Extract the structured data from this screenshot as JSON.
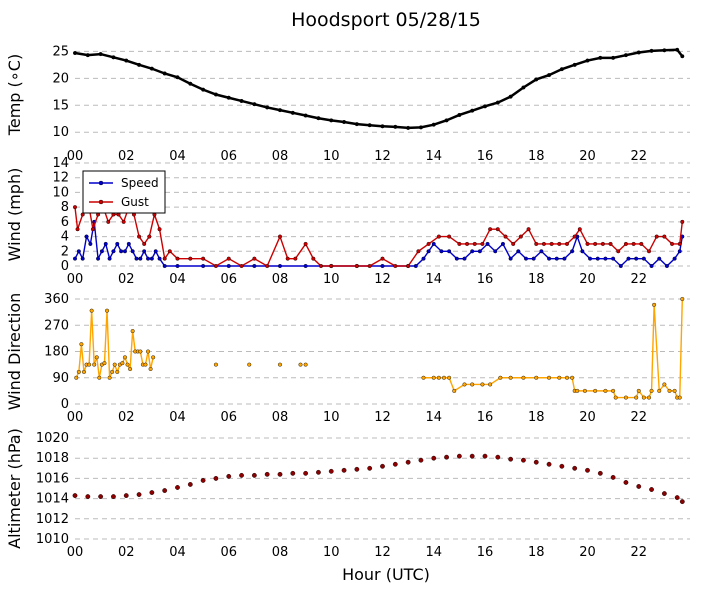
{
  "figure": {
    "title": "Hoodsport 05/28/15",
    "xlabel": "Hour (UTC)",
    "x_ticks": [
      "00",
      "02",
      "04",
      "06",
      "08",
      "10",
      "12",
      "14",
      "16",
      "18",
      "20",
      "22"
    ]
  },
  "chart_data": [
    {
      "type": "line",
      "ylabel": "Temp (∘C)",
      "ylim": [
        8,
        26
      ],
      "yticks": [
        10,
        15,
        20,
        25
      ],
      "xlim": [
        0,
        24
      ],
      "grid": "horizontal dashed",
      "series": [
        {
          "color": "#000000",
          "x": [
            0,
            0.5,
            1,
            1.5,
            2,
            2.5,
            3,
            3.5,
            4,
            4.5,
            5,
            5.5,
            6,
            6.5,
            7,
            7.5,
            8,
            8.5,
            9,
            9.5,
            10,
            10.5,
            11,
            11.5,
            12,
            12.5,
            13,
            13.5,
            14,
            14.5,
            15,
            15.5,
            16,
            16.5,
            17,
            17.5,
            18,
            18.5,
            19,
            19.5,
            20,
            20.5,
            21,
            21.5,
            22,
            22.5,
            23,
            23.5,
            23.7
          ],
          "y": [
            24.7,
            24.3,
            24.5,
            23.9,
            23.3,
            22.5,
            21.8,
            20.9,
            20.2,
            19.0,
            17.9,
            17.0,
            16.4,
            15.8,
            15.2,
            14.6,
            14.1,
            13.6,
            13.1,
            12.6,
            12.2,
            11.9,
            11.5,
            11.3,
            11.1,
            11.0,
            10.8,
            10.9,
            11.4,
            12.2,
            13.2,
            14.0,
            14.8,
            15.5,
            16.6,
            18.3,
            19.8,
            20.6,
            21.7,
            22.5,
            23.3,
            23.8,
            23.8,
            24.3,
            24.8,
            25.1,
            25.2,
            25.3,
            24.1
          ]
        }
      ]
    },
    {
      "type": "line",
      "ylabel": "Wind (mph)",
      "ylim": [
        0,
        14
      ],
      "yticks": [
        0,
        2,
        4,
        6,
        8,
        10,
        12,
        14
      ],
      "xlim": [
        0,
        24
      ],
      "grid": "horizontal dashed",
      "legend": "top-left",
      "series": [
        {
          "name": "Speed",
          "color": "#0000cc",
          "x": [
            0,
            0.15,
            0.3,
            0.45,
            0.6,
            0.75,
            0.9,
            1.05,
            1.2,
            1.35,
            1.5,
            1.65,
            1.8,
            1.95,
            2.1,
            2.25,
            2.4,
            2.55,
            2.7,
            2.85,
            3.0,
            3.15,
            3.3,
            3.5,
            4,
            5,
            6,
            7,
            8,
            9,
            10,
            11,
            12,
            13,
            13.3,
            13.6,
            13.8,
            14.0,
            14.3,
            14.6,
            14.9,
            15.2,
            15.5,
            15.8,
            16.1,
            16.4,
            16.7,
            17.0,
            17.3,
            17.6,
            17.9,
            18.2,
            18.5,
            18.8,
            19.1,
            19.4,
            19.6,
            19.8,
            20.1,
            20.4,
            20.7,
            21.0,
            21.3,
            21.6,
            21.9,
            22.2,
            22.5,
            22.8,
            23.1,
            23.4,
            23.6,
            23.7
          ],
          "y": [
            1,
            2,
            1,
            4,
            3,
            6,
            1,
            2,
            3,
            1,
            2,
            3,
            2,
            2,
            3,
            2,
            1,
            1,
            2,
            1,
            1,
            2,
            1,
            0,
            0,
            0,
            0,
            0,
            0,
            0,
            0,
            0,
            0,
            0,
            0,
            1,
            2,
            3,
            2,
            2,
            1,
            1,
            2,
            2,
            3,
            2,
            3,
            1,
            2,
            1,
            1,
            2,
            1,
            1,
            1,
            2,
            4,
            2,
            1,
            1,
            1,
            1,
            0,
            1,
            1,
            1,
            0,
            1,
            0,
            1,
            2,
            4
          ]
        },
        {
          "name": "Gust",
          "color": "#cc0000",
          "x": [
            0,
            0.1,
            0.3,
            0.5,
            0.7,
            0.9,
            1.1,
            1.3,
            1.5,
            1.7,
            1.9,
            2.1,
            2.3,
            2.5,
            2.7,
            2.9,
            3.1,
            3.3,
            3.5,
            3.7,
            4.0,
            4.5,
            5.0,
            5.5,
            6.0,
            6.5,
            7.0,
            7.5,
            8.0,
            8.3,
            8.6,
            9.0,
            9.3,
            9.6,
            10,
            11,
            11.5,
            12,
            12.5,
            13,
            13.4,
            13.8,
            14.2,
            14.6,
            15,
            15.3,
            15.6,
            15.9,
            16.2,
            16.5,
            16.8,
            17.1,
            17.4,
            17.7,
            18,
            18.3,
            18.6,
            18.9,
            19.2,
            19.5,
            19.7,
            20.0,
            20.3,
            20.6,
            20.9,
            21.2,
            21.5,
            21.8,
            22.1,
            22.4,
            22.7,
            23.0,
            23.3,
            23.6,
            23.7
          ],
          "y": [
            8,
            5,
            7,
            9,
            5,
            7,
            8,
            6,
            7,
            7,
            6,
            8,
            7,
            4,
            3,
            4,
            7,
            5,
            1,
            2,
            1,
            1,
            1,
            0,
            1,
            0,
            1,
            0,
            4,
            1,
            1,
            3,
            1,
            0,
            0,
            0,
            0,
            1,
            0,
            0,
            2,
            3,
            4,
            4,
            3,
            3,
            3,
            3,
            5,
            5,
            4,
            3,
            4,
            5,
            3,
            3,
            3,
            3,
            3,
            4,
            5,
            3,
            3,
            3,
            3,
            2,
            3,
            3,
            3,
            2,
            4,
            4,
            3,
            3,
            6
          ]
        }
      ]
    },
    {
      "type": "scatter",
      "ylabel": "Wind Direction",
      "ylim": [
        0,
        360
      ],
      "yticks": [
        0,
        90,
        180,
        270,
        360
      ],
      "xlim": [
        0,
        24
      ],
      "grid": "horizontal dashed",
      "series": [
        {
          "color": "#ffa500",
          "x": [
            0.05,
            0.15,
            0.25,
            0.35,
            0.45,
            0.55,
            0.65,
            0.75,
            0.85,
            0.95,
            1.05,
            1.15,
            1.25,
            1.35,
            1.45,
            1.55,
            1.65,
            1.75,
            1.85,
            1.95,
            2.05,
            2.15,
            2.25,
            2.35,
            2.45,
            2.55,
            2.65,
            2.75,
            2.85,
            2.95,
            3.05
          ],
          "y": [
            90,
            110,
            205,
            110,
            135,
            135,
            320,
            135,
            160,
            90,
            135,
            140,
            320,
            90,
            110,
            135,
            110,
            135,
            140,
            160,
            135,
            120,
            250,
            180,
            180,
            180,
            135,
            135,
            180,
            120,
            160
          ]
        },
        {
          "color": "#ffa500",
          "x": [
            5.5,
            6.8,
            8.0,
            8.8,
            9.0
          ],
          "y": [
            135,
            135,
            135,
            135,
            135
          ]
        },
        {
          "color": "#ffa500",
          "x": [
            13.6,
            14.0,
            14.2,
            14.4,
            14.6,
            14.8,
            15.2,
            15.5,
            15.9,
            16.2,
            16.6,
            17.0,
            17.5,
            18.0,
            18.5,
            18.9,
            19.2,
            19.4,
            19.5,
            19.6,
            19.9,
            20.3,
            20.7,
            21.0,
            21.1,
            21.5,
            21.9,
            22.0,
            22.2,
            22.4,
            22.5,
            22.6,
            22.8,
            23.0,
            23.2,
            23.4,
            23.5,
            23.6,
            23.7
          ],
          "y": [
            90,
            90,
            90,
            90,
            90,
            45,
            67,
            67,
            67,
            67,
            90,
            90,
            90,
            90,
            90,
            90,
            90,
            90,
            45,
            45,
            45,
            45,
            45,
            45,
            22,
            22,
            22,
            45,
            22,
            22,
            45,
            340,
            45,
            67,
            45,
            45,
            22,
            22,
            360
          ]
        }
      ]
    },
    {
      "type": "scatter",
      "ylabel": "Altimeter (hPa)",
      "ylim": [
        1010,
        1020
      ],
      "yticks": [
        1010,
        1012,
        1014,
        1016,
        1018,
        1020
      ],
      "xlim": [
        0,
        24
      ],
      "grid": "horizontal dashed",
      "series": [
        {
          "color": "#8b0000",
          "x": [
            0,
            0.5,
            1,
            1.5,
            2,
            2.5,
            3,
            3.5,
            4,
            4.5,
            5,
            5.5,
            6,
            6.5,
            7,
            7.5,
            8,
            8.5,
            9,
            9.5,
            10,
            10.5,
            11,
            11.5,
            12,
            12.5,
            13,
            13.5,
            14,
            14.5,
            15,
            15.5,
            16,
            16.5,
            17,
            17.5,
            18,
            18.5,
            19,
            19.5,
            20,
            20.5,
            21,
            21.5,
            22,
            22.5,
            23,
            23.5,
            23.7
          ],
          "y": [
            1014.3,
            1014.2,
            1014.2,
            1014.2,
            1014.3,
            1014.4,
            1014.6,
            1014.8,
            1015.1,
            1015.4,
            1015.8,
            1016.0,
            1016.2,
            1016.3,
            1016.3,
            1016.4,
            1016.4,
            1016.5,
            1016.5,
            1016.6,
            1016.7,
            1016.8,
            1016.9,
            1017.0,
            1017.2,
            1017.4,
            1017.6,
            1017.8,
            1018.0,
            1018.1,
            1018.2,
            1018.2,
            1018.2,
            1018.1,
            1017.9,
            1017.8,
            1017.6,
            1017.4,
            1017.2,
            1017.0,
            1016.8,
            1016.5,
            1016.1,
            1015.6,
            1015.2,
            1014.9,
            1014.5,
            1014.1,
            1013.7
          ]
        }
      ]
    }
  ]
}
